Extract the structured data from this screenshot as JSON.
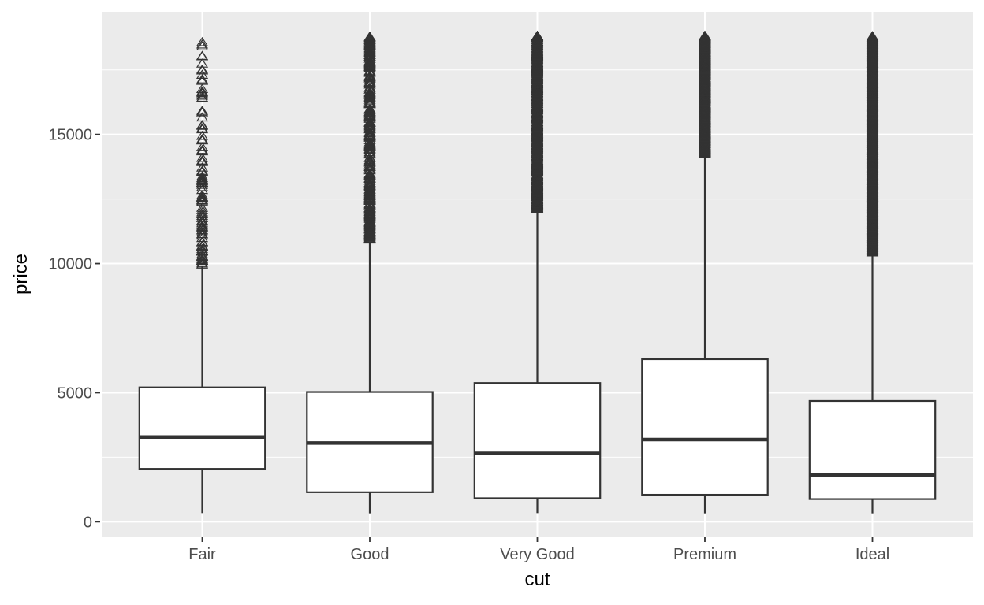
{
  "chart_data": {
    "type": "boxplot",
    "title": "",
    "xlabel": "cut",
    "ylabel": "price",
    "categories": [
      "Fair",
      "Good",
      "Very Good",
      "Premium",
      "Ideal"
    ],
    "y_ticks": [
      0,
      5000,
      10000,
      15000
    ],
    "y_minor_ticks": [
      2500,
      7500,
      12500,
      17500
    ],
    "ylim": [
      -599,
      19748
    ],
    "grid": "major-and-minor-white-on-gray",
    "legend": "none",
    "outlier_shape": "open-triangle-up",
    "series": [
      {
        "name": "Fair",
        "whisker_low": 337,
        "q1": 2050,
        "median": 3282,
        "q3": 5206,
        "whisker_high": 9899,
        "outlier_min": 9960,
        "outlier_max": 18574,
        "outlier_count": 110,
        "outlier_skew": 1.35,
        "seed": 1077
      },
      {
        "name": "Good",
        "whisker_low": 327,
        "q1": 1145,
        "median": 3050,
        "q3": 5028,
        "whisker_high": 10838,
        "outlier_min": 10900,
        "outlier_max": 18788,
        "outlier_count": 320,
        "outlier_skew": 1.2,
        "seed": 1154
      },
      {
        "name": "Very Good",
        "whisker_low": 336,
        "q1": 912,
        "median": 2648,
        "q3": 5373,
        "whisker_high": 12057,
        "outlier_min": 12110,
        "outlier_max": 18818,
        "outlier_count": 780,
        "outlier_skew": 1.15,
        "seed": 1231
      },
      {
        "name": "Premium",
        "whisker_low": 326,
        "q1": 1046,
        "median": 3185,
        "q3": 6296,
        "whisker_high": 14167,
        "outlier_min": 14220,
        "outlier_max": 18823,
        "outlier_count": 900,
        "outlier_skew": 1.0,
        "seed": 1308
      },
      {
        "name": "Ideal",
        "whisker_low": 326,
        "q1": 878,
        "median": 1810,
        "q3": 4679,
        "whisker_high": 10376,
        "outlier_min": 10430,
        "outlier_max": 18806,
        "outlier_count": 1500,
        "outlier_skew": 1.1,
        "seed": 1385
      }
    ]
  },
  "style": {
    "panel_fill": "#EBEBEB",
    "grid_color": "#FFFFFF",
    "geom_color": "#333333",
    "box_fill": "#FFFFFF",
    "tick_mark_color": "#333333",
    "tick_label_color": "#4D4D4D",
    "axis_title_color": "#000000"
  }
}
